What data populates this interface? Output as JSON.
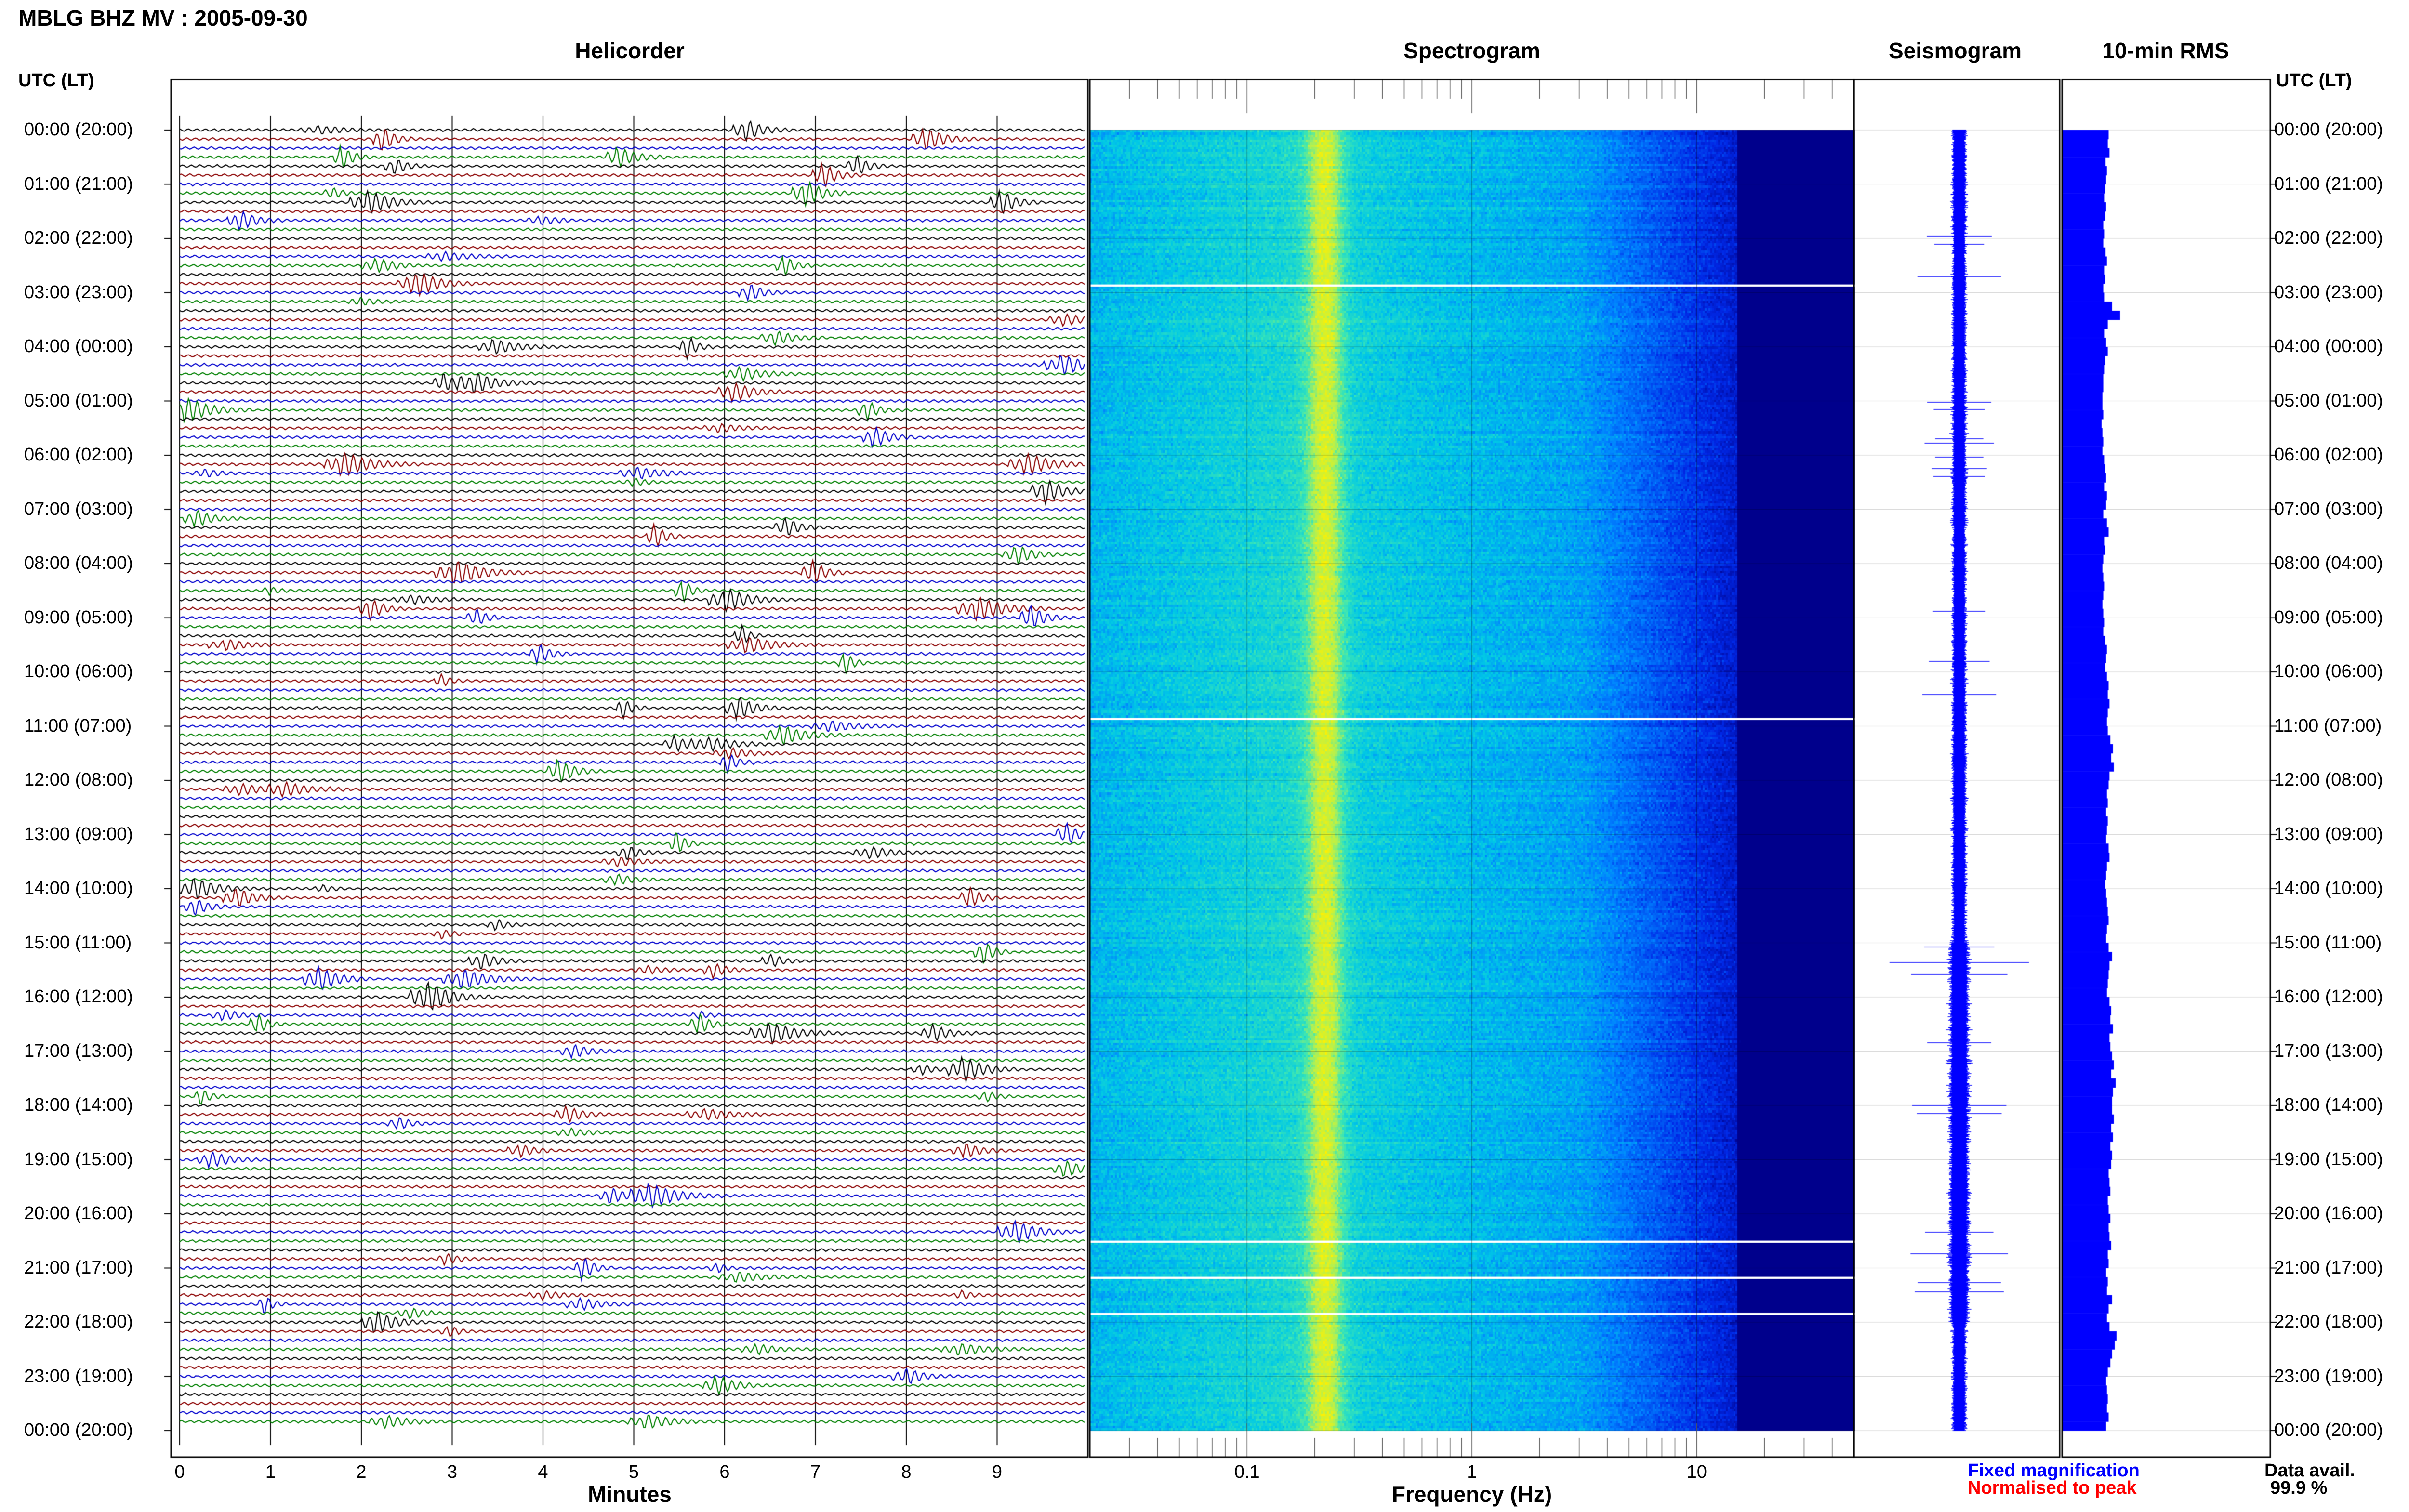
{
  "title": "MBLG BHZ MV : 2005-09-30",
  "panels": {
    "helicorder": "Helicorder",
    "spectrogram": "Spectrogram",
    "seismogram": "Seismogram",
    "rms": "10-min RMS"
  },
  "utc_header": "UTC (LT)",
  "legend": {
    "fixed": "Fixed magnification",
    "normalised": "Normalised to peak",
    "data_avail_label": "Data avail.",
    "data_avail_value": "99.9 %"
  },
  "colors": {
    "trace_cycle": [
      "#000000",
      "#8b0000",
      "#0000cd",
      "#008000"
    ],
    "fixed": "#0000ff",
    "normalised": "#ff0000",
    "rms_bar": "#0000ff"
  },
  "chart_data": [
    {
      "type": "line",
      "name": "helicorder",
      "title": "Helicorder",
      "xlabel": "Minutes",
      "x_ticks": [
        "0",
        "1",
        "2",
        "3",
        "4",
        "5",
        "6",
        "7",
        "8",
        "9"
      ],
      "xlim": [
        0,
        10
      ],
      "lines_per_day": 144,
      "minutes_per_line": 10
    },
    {
      "type": "heatmap",
      "name": "spectrogram",
      "title": "Spectrogram",
      "xlabel": "Frequency (Hz)",
      "x_scale": "log",
      "xlim": [
        0.02,
        50
      ],
      "x_ticks": [
        "0.1",
        "1",
        "10"
      ],
      "gaps_utc": [
        "02:50",
        "10:50",
        "20:30",
        "21:10",
        "21:50"
      ]
    },
    {
      "type": "line",
      "name": "seismogram",
      "title": "Seismogram"
    },
    {
      "type": "bar",
      "name": "rms",
      "title": "10-min RMS",
      "orientation": "horizontal",
      "bins_per_hour": 6,
      "values": [
        0.62,
        0.6,
        0.64,
        0.55,
        0.58,
        0.56,
        0.54,
        0.52,
        0.56,
        0.54,
        0.5,
        0.52,
        0.5,
        0.55,
        0.58,
        0.52,
        0.54,
        0.5,
        0.52,
        0.7,
        0.88,
        0.6,
        0.52,
        0.56,
        0.6,
        0.54,
        0.52,
        0.5,
        0.5,
        0.48,
        0.48,
        0.5,
        0.46,
        0.48,
        0.5,
        0.48,
        0.52,
        0.54,
        0.56,
        0.52,
        0.58,
        0.56,
        0.5,
        0.58,
        0.62,
        0.52,
        0.54,
        0.5,
        0.48,
        0.5,
        0.52,
        0.5,
        0.48,
        0.5,
        0.52,
        0.5,
        0.54,
        0.58,
        0.56,
        0.54,
        0.58,
        0.62,
        0.6,
        0.64,
        0.6,
        0.58,
        0.6,
        0.66,
        0.72,
        0.68,
        0.74,
        0.64,
        0.62,
        0.58,
        0.6,
        0.56,
        0.6,
        0.58,
        0.56,
        0.62,
        0.64,
        0.58,
        0.56,
        0.54,
        0.56,
        0.58,
        0.6,
        0.62,
        0.58,
        0.56,
        0.62,
        0.7,
        0.64,
        0.62,
        0.6,
        0.58,
        0.64,
        0.68,
        0.66,
        0.72,
        0.64,
        0.66,
        0.7,
        0.74,
        0.68,
        0.78,
        0.72,
        0.7,
        0.7,
        0.74,
        0.68,
        0.72,
        0.66,
        0.7,
        0.68,
        0.62,
        0.64,
        0.66,
        0.6,
        0.62,
        0.66,
        0.62,
        0.64,
        0.68,
        0.6,
        0.62,
        0.56,
        0.6,
        0.58,
        0.7,
        0.62,
        0.58,
        0.64,
        0.8,
        0.76,
        0.7,
        0.66,
        0.6,
        0.56,
        0.58,
        0.6,
        0.58,
        0.62,
        0.56
      ]
    }
  ]
}
